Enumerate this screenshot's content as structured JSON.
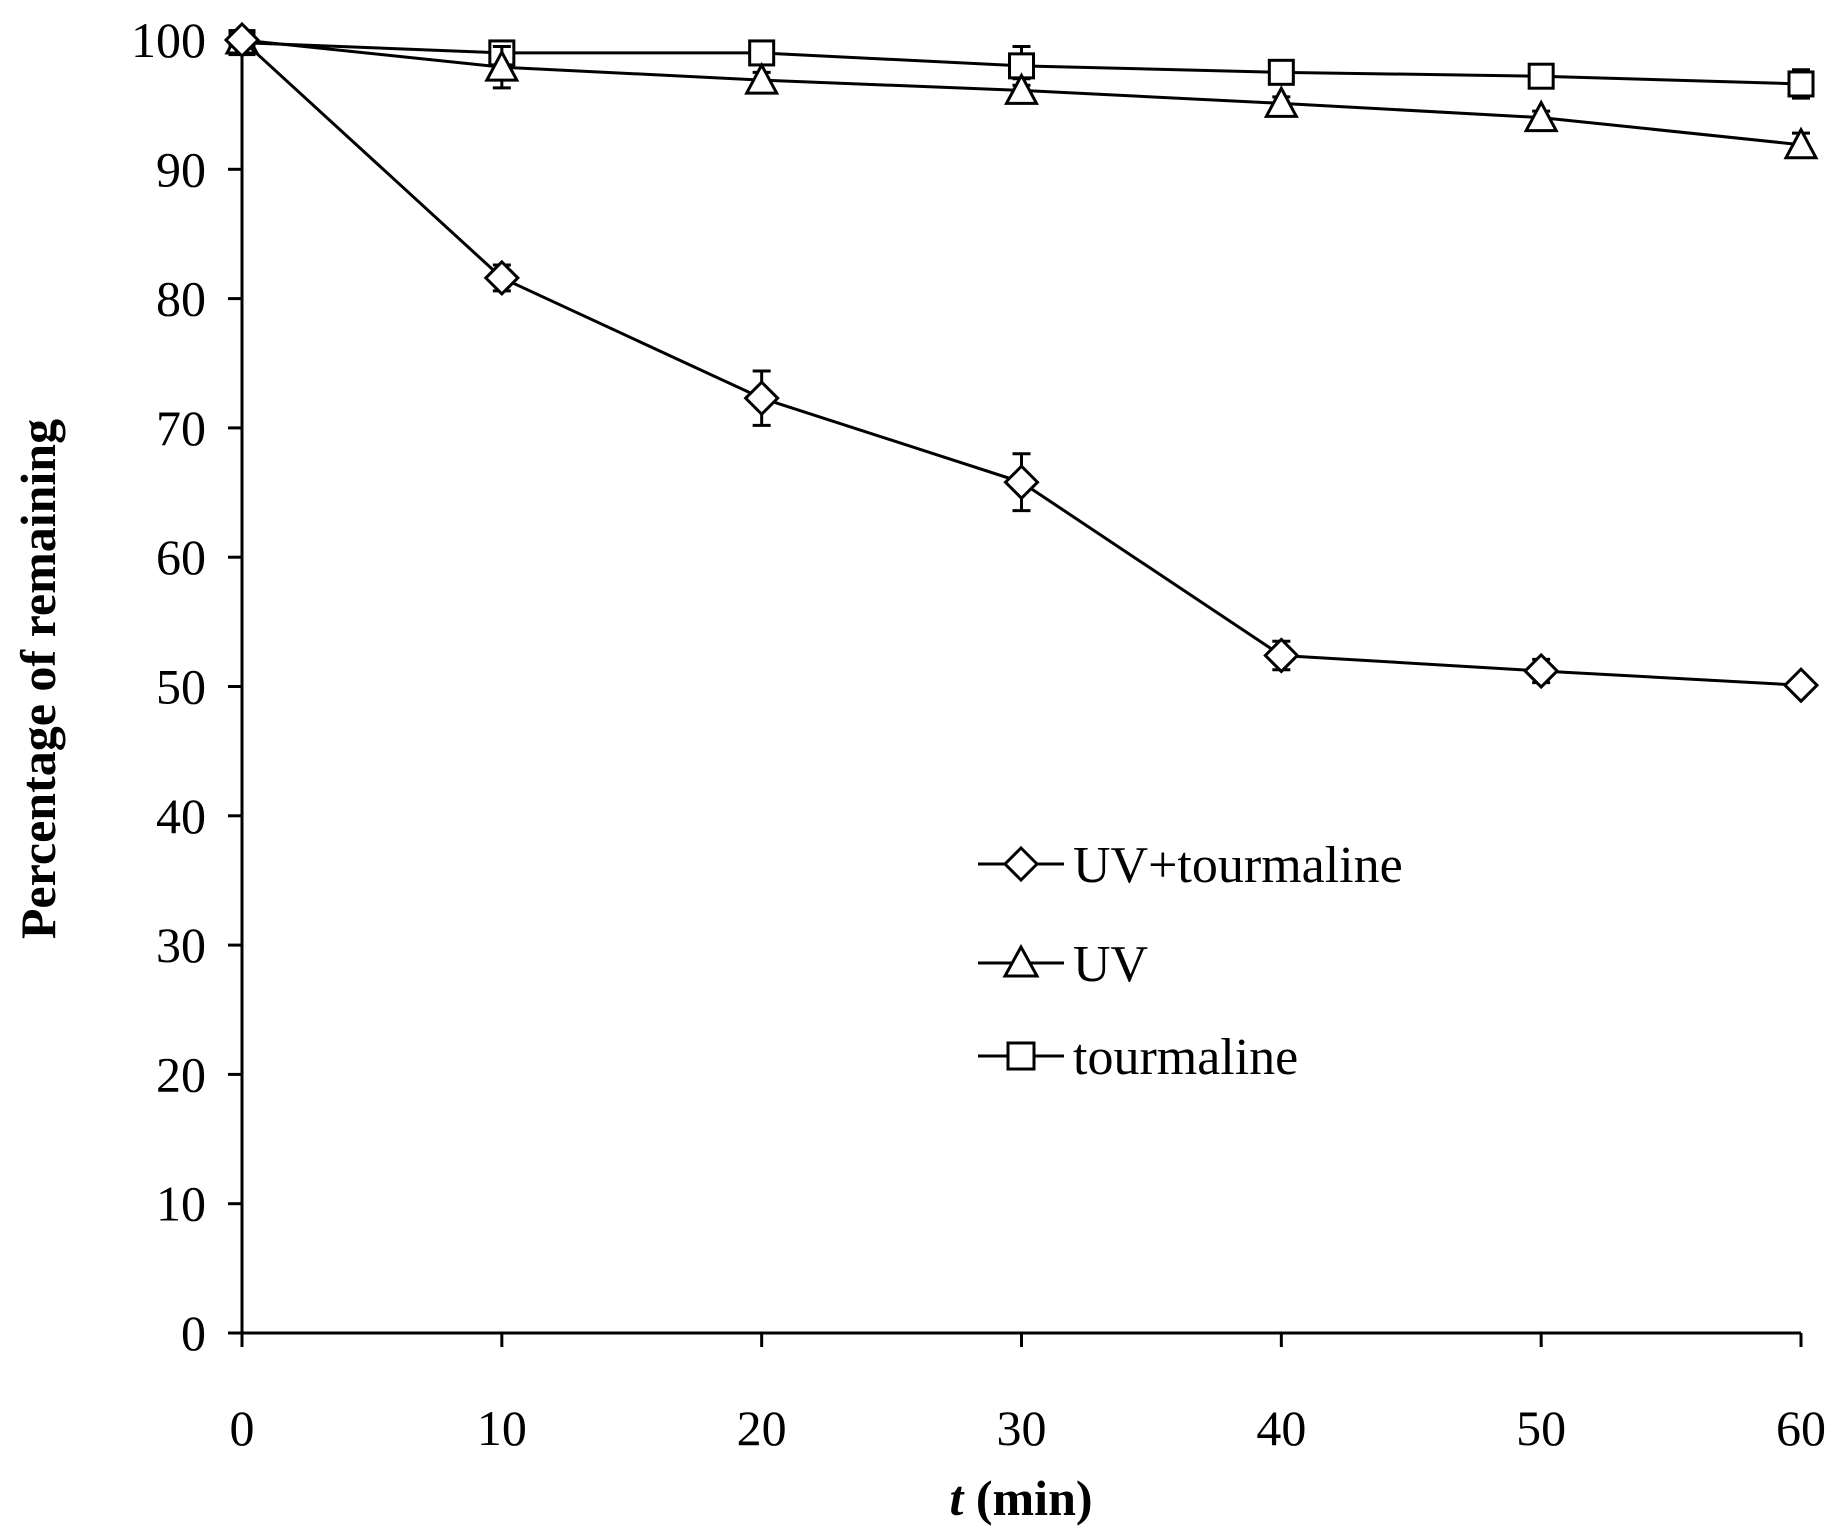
{
  "chart_data": {
    "type": "line",
    "title": "",
    "xlabel_italic": "t",
    "xlabel_rest": " (min)",
    "ylabel": "Percentage of remaining",
    "x": [
      0,
      10,
      20,
      30,
      40,
      50,
      60
    ],
    "xlim": [
      0,
      60
    ],
    "ylim": [
      0,
      100
    ],
    "xticks": [
      0,
      10,
      20,
      30,
      40,
      50,
      60
    ],
    "yticks": [
      0,
      10,
      20,
      30,
      40,
      50,
      60,
      70,
      80,
      90,
      100
    ],
    "legend_position": "center-right",
    "series": [
      {
        "name": "UV+tourmaline",
        "marker": "diamond",
        "values": [
          100,
          81.6,
          72.3,
          65.8,
          52.4,
          51.2,
          50.1
        ],
        "errors": [
          0.3,
          1.0,
          2.1,
          2.2,
          1.1,
          0.9,
          0.6
        ]
      },
      {
        "name": "UV",
        "marker": "triangle",
        "values": [
          100,
          97.9,
          96.9,
          96.1,
          95.1,
          94.0,
          91.9
        ],
        "errors": [
          0.3,
          1.6,
          0.6,
          0.9,
          0.5,
          0.5,
          0.9
        ]
      },
      {
        "name": "tourmaline",
        "marker": "square",
        "values": [
          99.8,
          99.0,
          99.0,
          98.0,
          97.5,
          97.2,
          96.6
        ],
        "errors": [
          0.3,
          0.6,
          0.5,
          1.5,
          0.6,
          0.6,
          1.1
        ]
      }
    ]
  }
}
